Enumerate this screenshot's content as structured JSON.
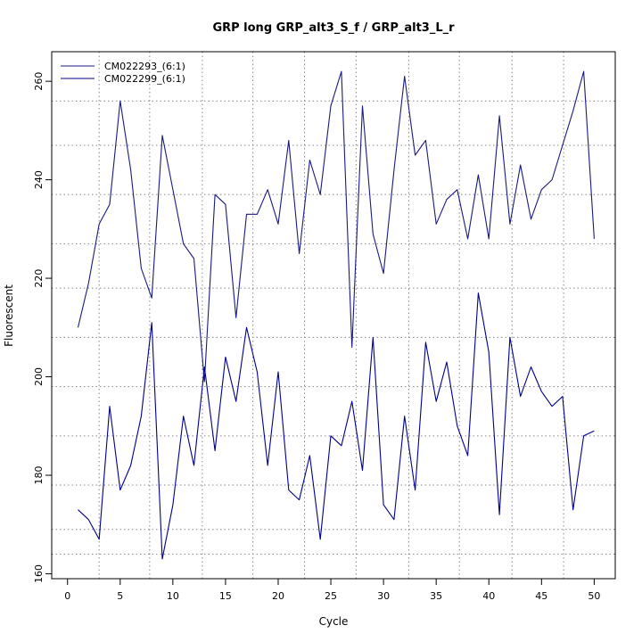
{
  "chart_data": {
    "type": "line",
    "title": "GRP long GRP_alt3_S_f / GRP_alt3_L_r",
    "xlabel": "Cycle",
    "ylabel": "Fluorescent",
    "xlim": [
      -1.5,
      52
    ],
    "ylim": [
      159,
      266
    ],
    "x_ticks": [
      0,
      5,
      10,
      15,
      20,
      25,
      30,
      35,
      40,
      45,
      50
    ],
    "y_ticks": [
      160,
      180,
      200,
      220,
      240,
      260
    ],
    "x_grid": [
      3,
      7.8,
      12.8,
      17.6,
      22.5,
      27.4,
      32.4,
      37.2,
      42.2,
      47.1
    ],
    "y_grid": [
      164,
      169,
      178,
      188,
      198,
      208,
      218,
      227,
      237,
      247,
      256
    ],
    "legend_position": "top-left",
    "x": [
      1,
      2,
      3,
      4,
      5,
      6,
      7,
      8,
      9,
      10,
      11,
      12,
      13,
      14,
      15,
      16,
      17,
      18,
      19,
      20,
      21,
      22,
      23,
      24,
      25,
      26,
      27,
      28,
      29,
      30,
      31,
      32,
      33,
      34,
      35,
      36,
      37,
      38,
      39,
      40,
      41,
      42,
      43,
      44,
      45,
      46,
      47,
      48,
      49,
      50
    ],
    "series": [
      {
        "name": "CM022293_(6:1)",
        "color": "#1a1a80",
        "values": [
          210,
          219,
          231,
          235,
          256,
          242,
          222,
          216,
          249,
          238,
          227,
          224,
          199,
          237,
          235,
          212,
          233,
          233,
          238,
          231,
          248,
          225,
          244,
          237,
          255,
          262,
          206,
          255,
          229,
          221,
          242,
          261,
          245,
          248,
          231,
          236,
          238,
          228,
          241,
          228,
          253,
          231,
          243,
          232,
          238,
          240,
          247,
          254,
          262,
          228
        ]
      },
      {
        "name": "CM022299_(6:1)",
        "color": "#00008b",
        "values": [
          173,
          171,
          167,
          194,
          177,
          182,
          192,
          211,
          163,
          174,
          192,
          182,
          202,
          185,
          204,
          195,
          210,
          201,
          182,
          201,
          177,
          175,
          184,
          167,
          188,
          186,
          195,
          181,
          208,
          174,
          171,
          192,
          177,
          207,
          195,
          203,
          190,
          184,
          217,
          205,
          172,
          208,
          196,
          202,
          197,
          194,
          196,
          173,
          188,
          189
        ]
      }
    ]
  }
}
